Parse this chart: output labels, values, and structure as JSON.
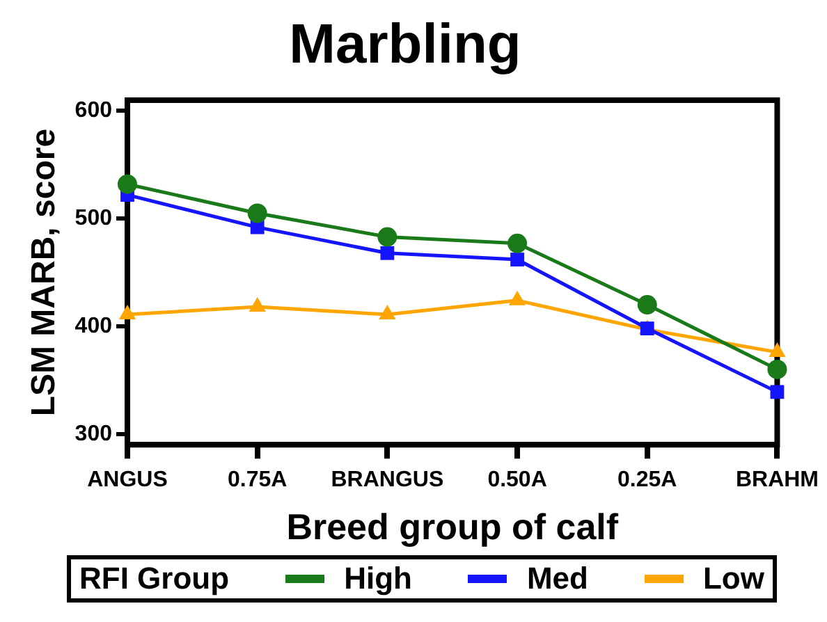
{
  "chart_data": {
    "type": "line",
    "title": "Marbling",
    "xlabel": "Breed group of calf",
    "ylabel": "LSM MARB, score",
    "legend_title": "RFI Group",
    "legend": "bottom",
    "grid": false,
    "categories": [
      "ANGUS",
      "0.75A",
      "BRANGUS",
      "0.50A",
      "0.25A",
      "BRAHM"
    ],
    "ylim": [
      290,
      610
    ],
    "yticks": [
      300,
      400,
      500,
      600
    ],
    "series": [
      {
        "name": "High",
        "color": "#1a7a1a",
        "marker": "circle",
        "values": [
          532,
          505,
          483,
          477,
          420,
          360
        ]
      },
      {
        "name": "Med",
        "color": "#1414ff",
        "marker": "square",
        "values": [
          522,
          492,
          468,
          462,
          398,
          339
        ]
      },
      {
        "name": "Low",
        "color": "#ffa500",
        "marker": "triangle",
        "values": [
          411,
          418,
          411,
          424,
          397,
          376
        ]
      }
    ]
  }
}
